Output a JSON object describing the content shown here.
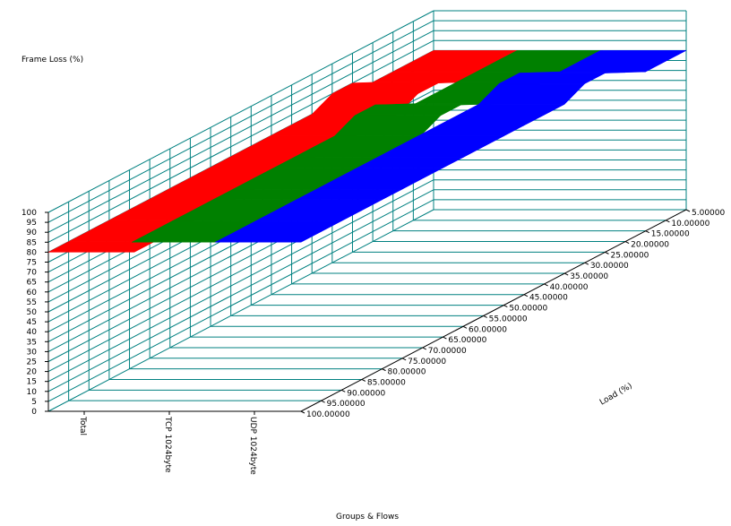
{
  "chart_data": {
    "type": "surface3d",
    "ylabel": "Frame Loss (%)",
    "xlabel": "Groups & Flows",
    "zlabel": "Load (%)",
    "ylim": [
      0,
      100
    ],
    "y_ticks": [
      "0",
      "5",
      "10",
      "15",
      "20",
      "25",
      "30",
      "35",
      "40",
      "45",
      "50",
      "55",
      "60",
      "65",
      "70",
      "75",
      "80",
      "85",
      "90",
      "95",
      "100"
    ],
    "groups": [
      "Total",
      "TCP 1024byte",
      "UDP 1024byte"
    ],
    "loads": [
      "5.00000",
      "10.00000",
      "15.00000",
      "20.00000",
      "25.00000",
      "30.00000",
      "35.00000",
      "40.00000",
      "45.00000",
      "50.00000",
      "55.00000",
      "60.00000",
      "65.00000",
      "70.00000",
      "75.00000",
      "80.00000",
      "85.00000",
      "90.00000",
      "95.00000",
      "100.00000"
    ],
    "grid": true,
    "colors": {
      "Total": "#ff0000",
      "TCP 1024byte": "#008000",
      "UDP 1024byte": "#0000ff",
      "grid": "#008080",
      "axis": "#000000"
    },
    "series": [
      {
        "name": "Total",
        "values": [
          0,
          0,
          0,
          0,
          5,
          5,
          0,
          0,
          0,
          0,
          0,
          0,
          0,
          0,
          0,
          0,
          0,
          0,
          0,
          0
        ]
      },
      {
        "name": "TCP 1024byte",
        "values": [
          0,
          0,
          0,
          0,
          0,
          0,
          5,
          10,
          10,
          5,
          5,
          5,
          5,
          5,
          5,
          5,
          5,
          5,
          5,
          5
        ]
      },
      {
        "name": "UDP 1024byte",
        "values": [
          0,
          0,
          0,
          5,
          10,
          10,
          5,
          5,
          5,
          5,
          5,
          5,
          5,
          5,
          5,
          5,
          5,
          5,
          5,
          5
        ]
      }
    ]
  }
}
